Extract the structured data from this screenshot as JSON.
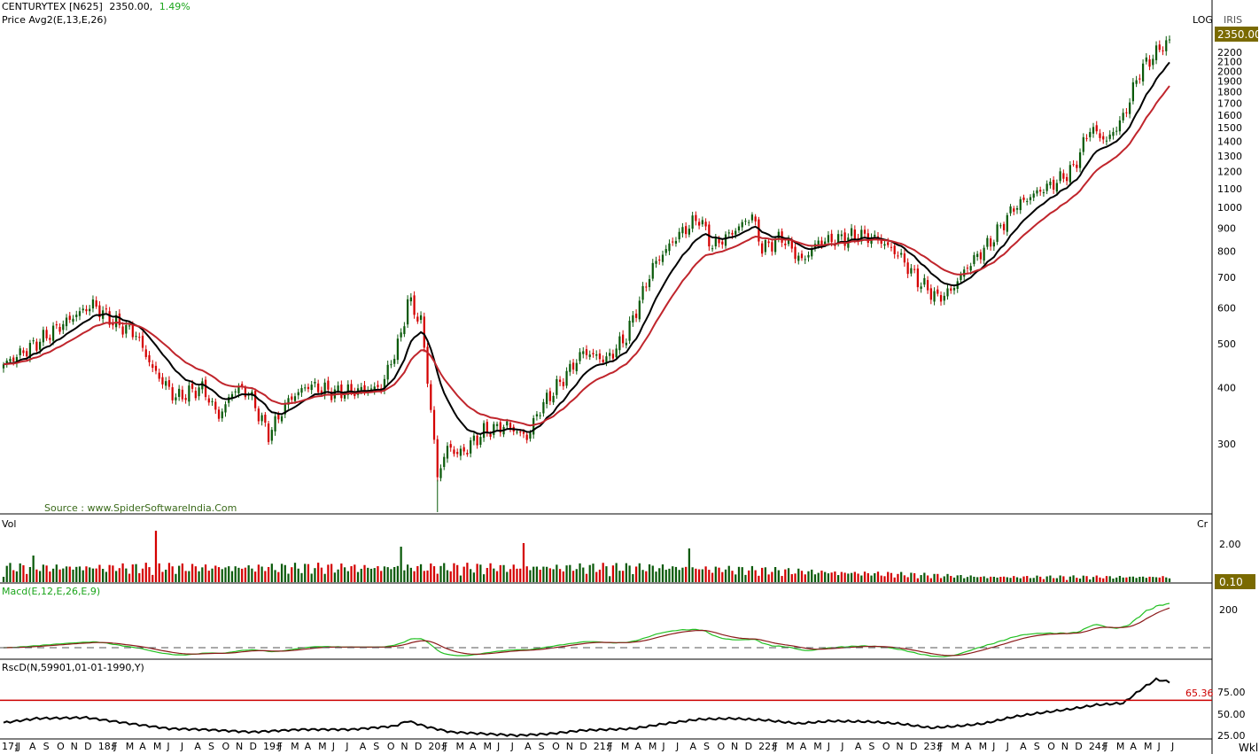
{
  "header": {
    "symbol": "CENTURYTEX [N625]",
    "last_price": "2350.00,",
    "change_pct": "1.49%",
    "price_study": "Price  Avg2(E,13,E,26)",
    "scale_mode": "LOG",
    "vendor": "IRIS",
    "price_tag": "2350.00",
    "source": "Source : www.SpiderSoftwareIndia.Com"
  },
  "panels": {
    "vol": {
      "label": "Vol",
      "unit": "Cr",
      "tick": "2.00",
      "last_tag": "0.10"
    },
    "macd": {
      "label": "Macd(E,12,E,26,E,9)",
      "tick": "200"
    },
    "rsc": {
      "label": "RscD(N,59901,01-01-1990,Y)",
      "ticks": [
        "75.00",
        "50.00",
        "25.00"
      ],
      "level_tag": "65.36"
    },
    "timeframe": "Wkl"
  },
  "colors": {
    "up_candle": "#0a5a0a",
    "down_candle": "#d40000",
    "ema13": "#000000",
    "ema26": "#c0252c",
    "macd_line": "#22c022",
    "macd_signal": "#8b1a1a",
    "rsc_line": "#000000",
    "rsc_level": "#cc0000",
    "tag_bg": "#7a6a00"
  },
  "chart_data": [
    {
      "type": "candlestick",
      "title": "CENTURYTEX [N625]",
      "scale": "log",
      "y_ticks": [
        300,
        400,
        500,
        600,
        700,
        800,
        900,
        1000,
        1100,
        1200,
        1300,
        1400,
        1500,
        1600,
        1700,
        1800,
        1900,
        2000,
        2100,
        2200
      ],
      "ylim": [
        220,
        2420
      ],
      "x_labels": [
        "17:J",
        "J",
        "A",
        "S",
        "O",
        "N",
        "D",
        "18:J",
        "F",
        "M",
        "A",
        "M",
        "J",
        "J",
        "A",
        "S",
        "O",
        "N",
        "D",
        "19:J",
        "F",
        "M",
        "A",
        "M",
        "J",
        "J",
        "A",
        "S",
        "O",
        "N",
        "D",
        "20:J",
        "F",
        "M",
        "A",
        "M",
        "J",
        "J",
        "A",
        "S",
        "O",
        "N",
        "D",
        "21:J",
        "F",
        "M",
        "A",
        "M",
        "J",
        "J",
        "A",
        "S",
        "O",
        "N",
        "D",
        "22:J",
        "F",
        "M",
        "A",
        "M",
        "J",
        "J",
        "A",
        "S",
        "O",
        "N",
        "D",
        "23:J",
        "F",
        "M",
        "A",
        "M",
        "J",
        "J",
        "A",
        "S",
        "O",
        "N",
        "D",
        "24:J",
        "F",
        "M",
        "A",
        "M",
        "J",
        "J"
      ],
      "anchors": [
        [
          0,
          450
        ],
        [
          8,
          490
        ],
        [
          16,
          540
        ],
        [
          22,
          580
        ],
        [
          27,
          610
        ],
        [
          33,
          560
        ],
        [
          40,
          525
        ],
        [
          45,
          440
        ],
        [
          52,
          380
        ],
        [
          60,
          400
        ],
        [
          65,
          345
        ],
        [
          70,
          400
        ],
        [
          74,
          390
        ],
        [
          80,
          315
        ],
        [
          86,
          375
        ],
        [
          92,
          405
        ],
        [
          100,
          390
        ],
        [
          108,
          395
        ],
        [
          114,
          400
        ],
        [
          120,
          520
        ],
        [
          122,
          625
        ],
        [
          126,
          560
        ],
        [
          128,
          420
        ],
        [
          131,
          255
        ],
        [
          134,
          295
        ],
        [
          138,
          285
        ],
        [
          145,
          320
        ],
        [
          152,
          330
        ],
        [
          158,
          310
        ],
        [
          162,
          360
        ],
        [
          168,
          410
        ],
        [
          175,
          480
        ],
        [
          182,
          460
        ],
        [
          188,
          520
        ],
        [
          196,
          740
        ],
        [
          203,
          860
        ],
        [
          210,
          950
        ],
        [
          214,
          820
        ],
        [
          220,
          880
        ],
        [
          226,
          960
        ],
        [
          229,
          810
        ],
        [
          235,
          860
        ],
        [
          241,
          760
        ],
        [
          246,
          840
        ],
        [
          252,
          850
        ],
        [
          258,
          870
        ],
        [
          264,
          850
        ],
        [
          270,
          790
        ],
        [
          276,
          690
        ],
        [
          282,
          630
        ],
        [
          286,
          655
        ],
        [
          291,
          740
        ],
        [
          298,
          840
        ],
        [
          305,
          1000
        ],
        [
          312,
          1080
        ],
        [
          318,
          1140
        ],
        [
          323,
          1220
        ],
        [
          328,
          1500
        ],
        [
          333,
          1400
        ],
        [
          338,
          1580
        ],
        [
          343,
          2000
        ],
        [
          348,
          2200
        ],
        [
          352,
          2350
        ]
      ],
      "bars": 353,
      "series": [
        {
          "name": "Price",
          "type": "candles"
        },
        {
          "name": "Avg2 EMA 13",
          "type": "line"
        },
        {
          "name": "Avg2 EMA 26",
          "type": "line"
        }
      ],
      "last": 2350.0,
      "change_pct": 1.49
    },
    {
      "type": "bar",
      "title": "Vol",
      "unit": "Cr",
      "y_ticks": [
        2.0
      ],
      "last": 0.1
    },
    {
      "type": "line",
      "title": "Macd(E,12,E,26,E,9)",
      "y_ticks": [
        200
      ],
      "series": [
        {
          "name": "MACD"
        },
        {
          "name": "Signal"
        }
      ]
    },
    {
      "type": "line",
      "title": "RscD(N,59901,01-01-1990,Y)",
      "y_ticks": [
        75,
        50,
        25
      ],
      "level": 65.36,
      "anchors": [
        [
          0,
          39
        ],
        [
          10,
          44
        ],
        [
          25,
          45
        ],
        [
          40,
          37
        ],
        [
          50,
          32
        ],
        [
          60,
          31
        ],
        [
          75,
          28
        ],
        [
          90,
          31
        ],
        [
          105,
          31
        ],
        [
          118,
          35
        ],
        [
          122,
          41
        ],
        [
          128,
          34
        ],
        [
          135,
          28
        ],
        [
          145,
          26
        ],
        [
          155,
          24
        ],
        [
          165,
          26
        ],
        [
          175,
          30
        ],
        [
          190,
          32
        ],
        [
          200,
          38
        ],
        [
          210,
          43
        ],
        [
          220,
          44
        ],
        [
          230,
          42
        ],
        [
          240,
          38
        ],
        [
          250,
          41
        ],
        [
          262,
          40
        ],
        [
          270,
          38
        ],
        [
          280,
          33
        ],
        [
          288,
          35
        ],
        [
          296,
          38
        ],
        [
          305,
          46
        ],
        [
          312,
          50
        ],
        [
          322,
          55
        ],
        [
          330,
          60
        ],
        [
          338,
          62
        ],
        [
          344,
          80
        ],
        [
          348,
          90
        ],
        [
          352,
          87
        ]
      ]
    }
  ]
}
